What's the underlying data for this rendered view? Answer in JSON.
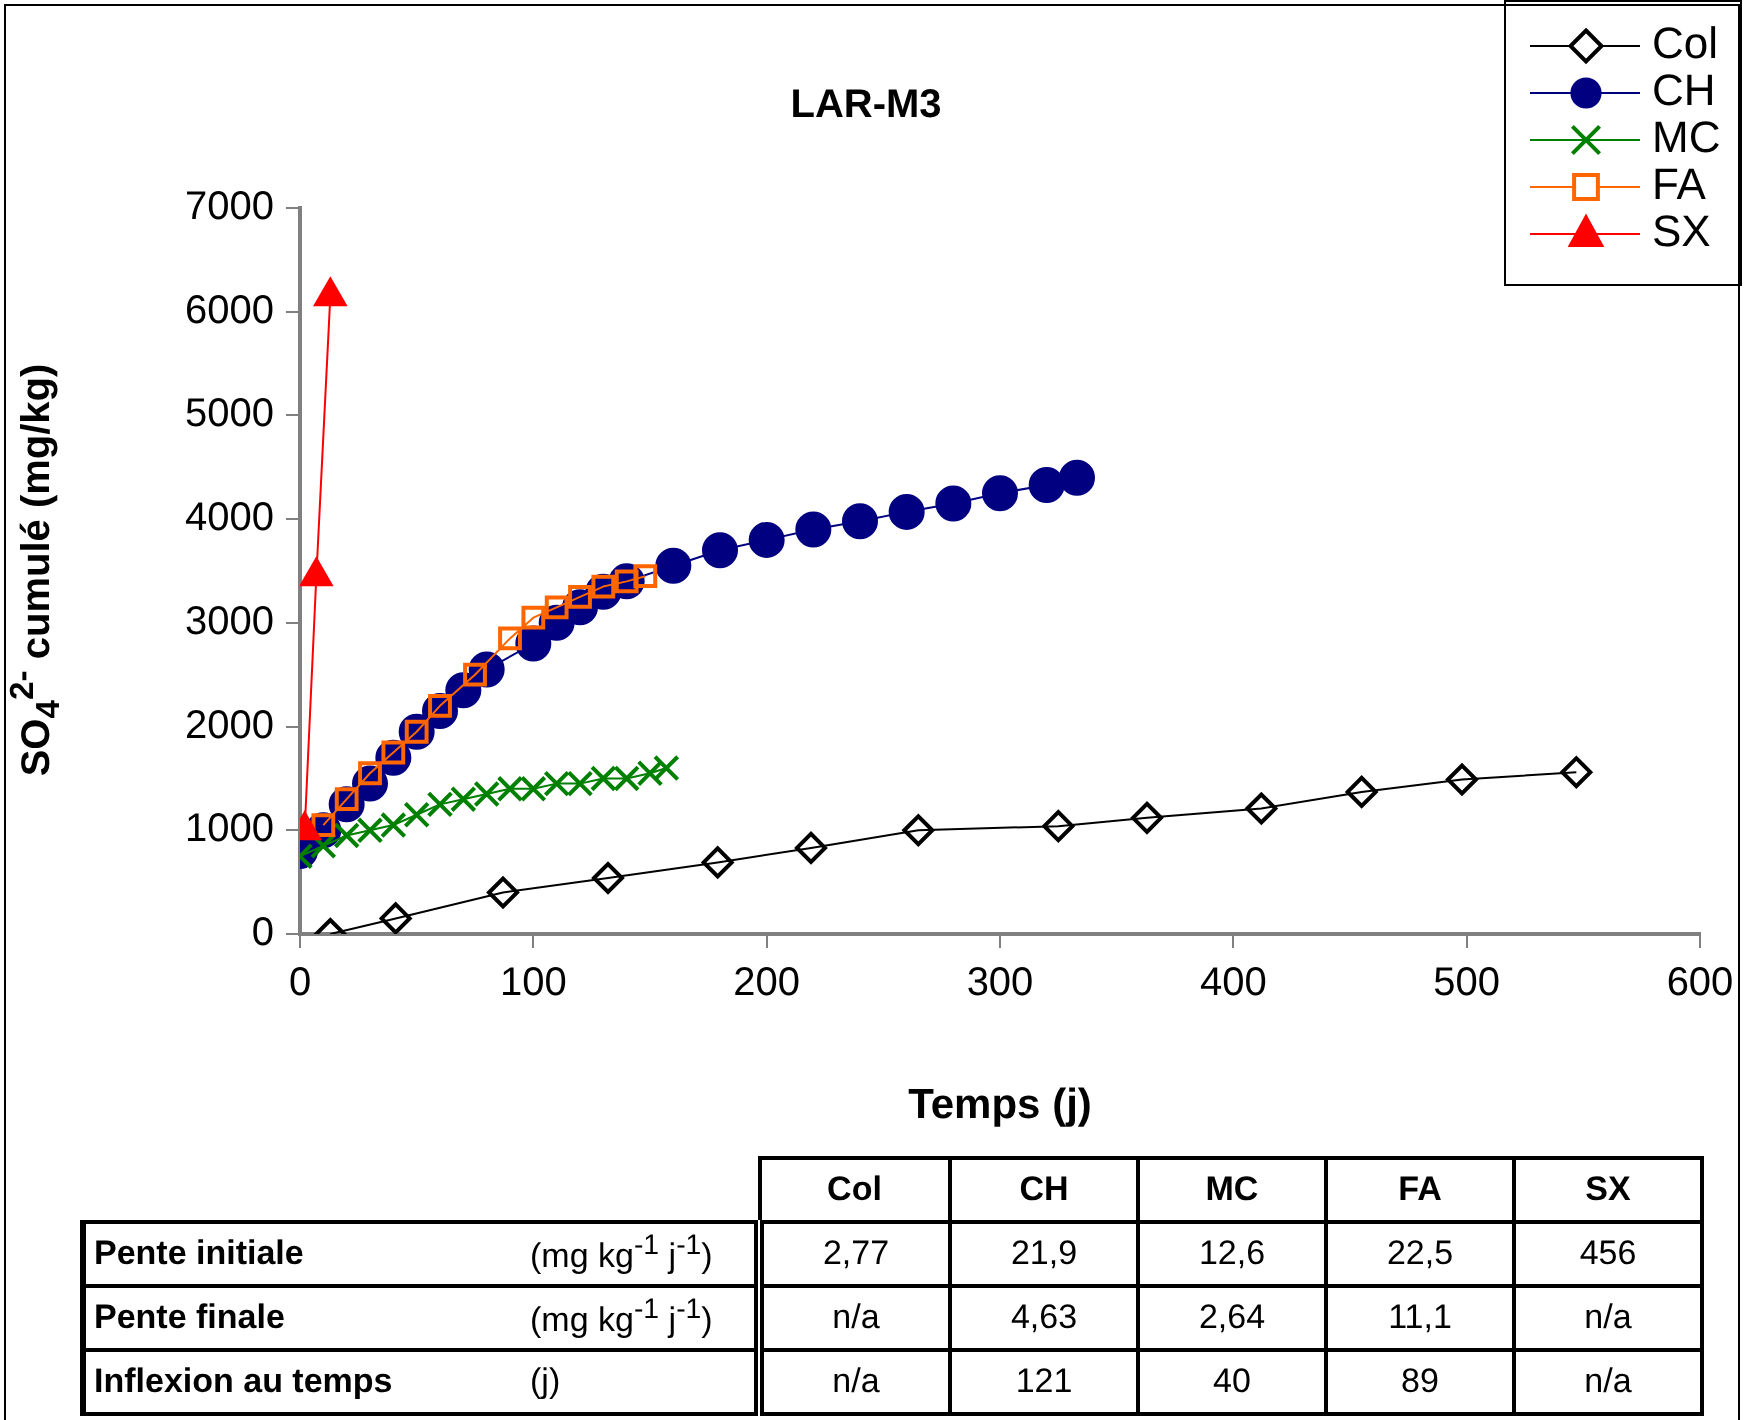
{
  "chart_data": {
    "type": "line",
    "title": "LAR-M3",
    "xlabel": "Temps (j)",
    "ylabel": "SO$_{4}$$^{2-}$ cumulé (mg/kg)",
    "xlim": [
      0,
      600
    ],
    "xticks": [
      0,
      100,
      200,
      300,
      400,
      500,
      600
    ],
    "ylim": [
      0,
      7000
    ],
    "yticks": [
      0,
      1000,
      2000,
      3000,
      4000,
      5000,
      6000,
      7000
    ],
    "grid": false,
    "legend": "top right",
    "line_style": "solid",
    "series": [
      {
        "name": "Col",
        "color": "#000000",
        "marker": "diamond",
        "x": [
          13,
          41,
          87,
          132,
          179,
          219,
          265,
          325,
          363,
          412,
          455,
          498,
          547
        ],
        "values": [
          0,
          150,
          400,
          540,
          690,
          830,
          1000,
          1040,
          1120,
          1210,
          1370,
          1490,
          1560
        ]
      },
      {
        "name": "CH",
        "color": "#000080",
        "marker": "circle",
        "x": [
          0,
          10,
          20,
          30,
          40,
          50,
          60,
          70,
          80,
          100,
          110,
          120,
          130,
          140,
          160,
          180,
          200,
          220,
          240,
          260,
          280,
          300,
          320,
          333
        ],
        "values": [
          800,
          1000,
          1250,
          1450,
          1700,
          1950,
          2150,
          2350,
          2550,
          2800,
          3000,
          3150,
          3300,
          3400,
          3550,
          3700,
          3800,
          3900,
          3980,
          4070,
          4150,
          4250,
          4330,
          4400
        ]
      },
      {
        "name": "MC",
        "color": "#008000",
        "marker": "cross",
        "x": [
          0,
          10,
          20,
          30,
          40,
          50,
          60,
          70,
          80,
          90,
          100,
          110,
          120,
          130,
          140,
          150,
          157
        ],
        "values": [
          750,
          850,
          950,
          1000,
          1050,
          1150,
          1250,
          1300,
          1350,
          1400,
          1400,
          1450,
          1450,
          1500,
          1500,
          1550,
          1600
        ]
      },
      {
        "name": "FA",
        "color": "#ff6600",
        "marker": "square",
        "x": [
          10,
          20,
          30,
          40,
          50,
          60,
          75,
          90,
          100,
          110,
          120,
          130,
          140,
          148
        ],
        "values": [
          1050,
          1300,
          1550,
          1750,
          1950,
          2200,
          2500,
          2850,
          3050,
          3150,
          3250,
          3350,
          3400,
          3450
        ]
      },
      {
        "name": "SX",
        "color": "#ff0000",
        "marker": "triangle",
        "x": [
          2,
          7,
          13
        ],
        "values": [
          1000,
          3450,
          6150
        ]
      }
    ],
    "annotations": [
      "Col",
      "CH",
      "MC",
      "FA",
      "SX",
      "Pente initiale",
      "(mg kg$^{-1}$ j$^{-1}$)",
      "2,77",
      "21,9",
      "12,6",
      "22,5",
      "456",
      "Pente finale",
      "(mg kg$^{-1}$ j$^{-1}$)",
      "n/a",
      "4,63",
      "2,64",
      "11,1",
      "n/a",
      "Inflexion au temps",
      "(j)",
      "n/a",
      "121",
      "40",
      "89",
      "n/a"
    ]
  }
}
